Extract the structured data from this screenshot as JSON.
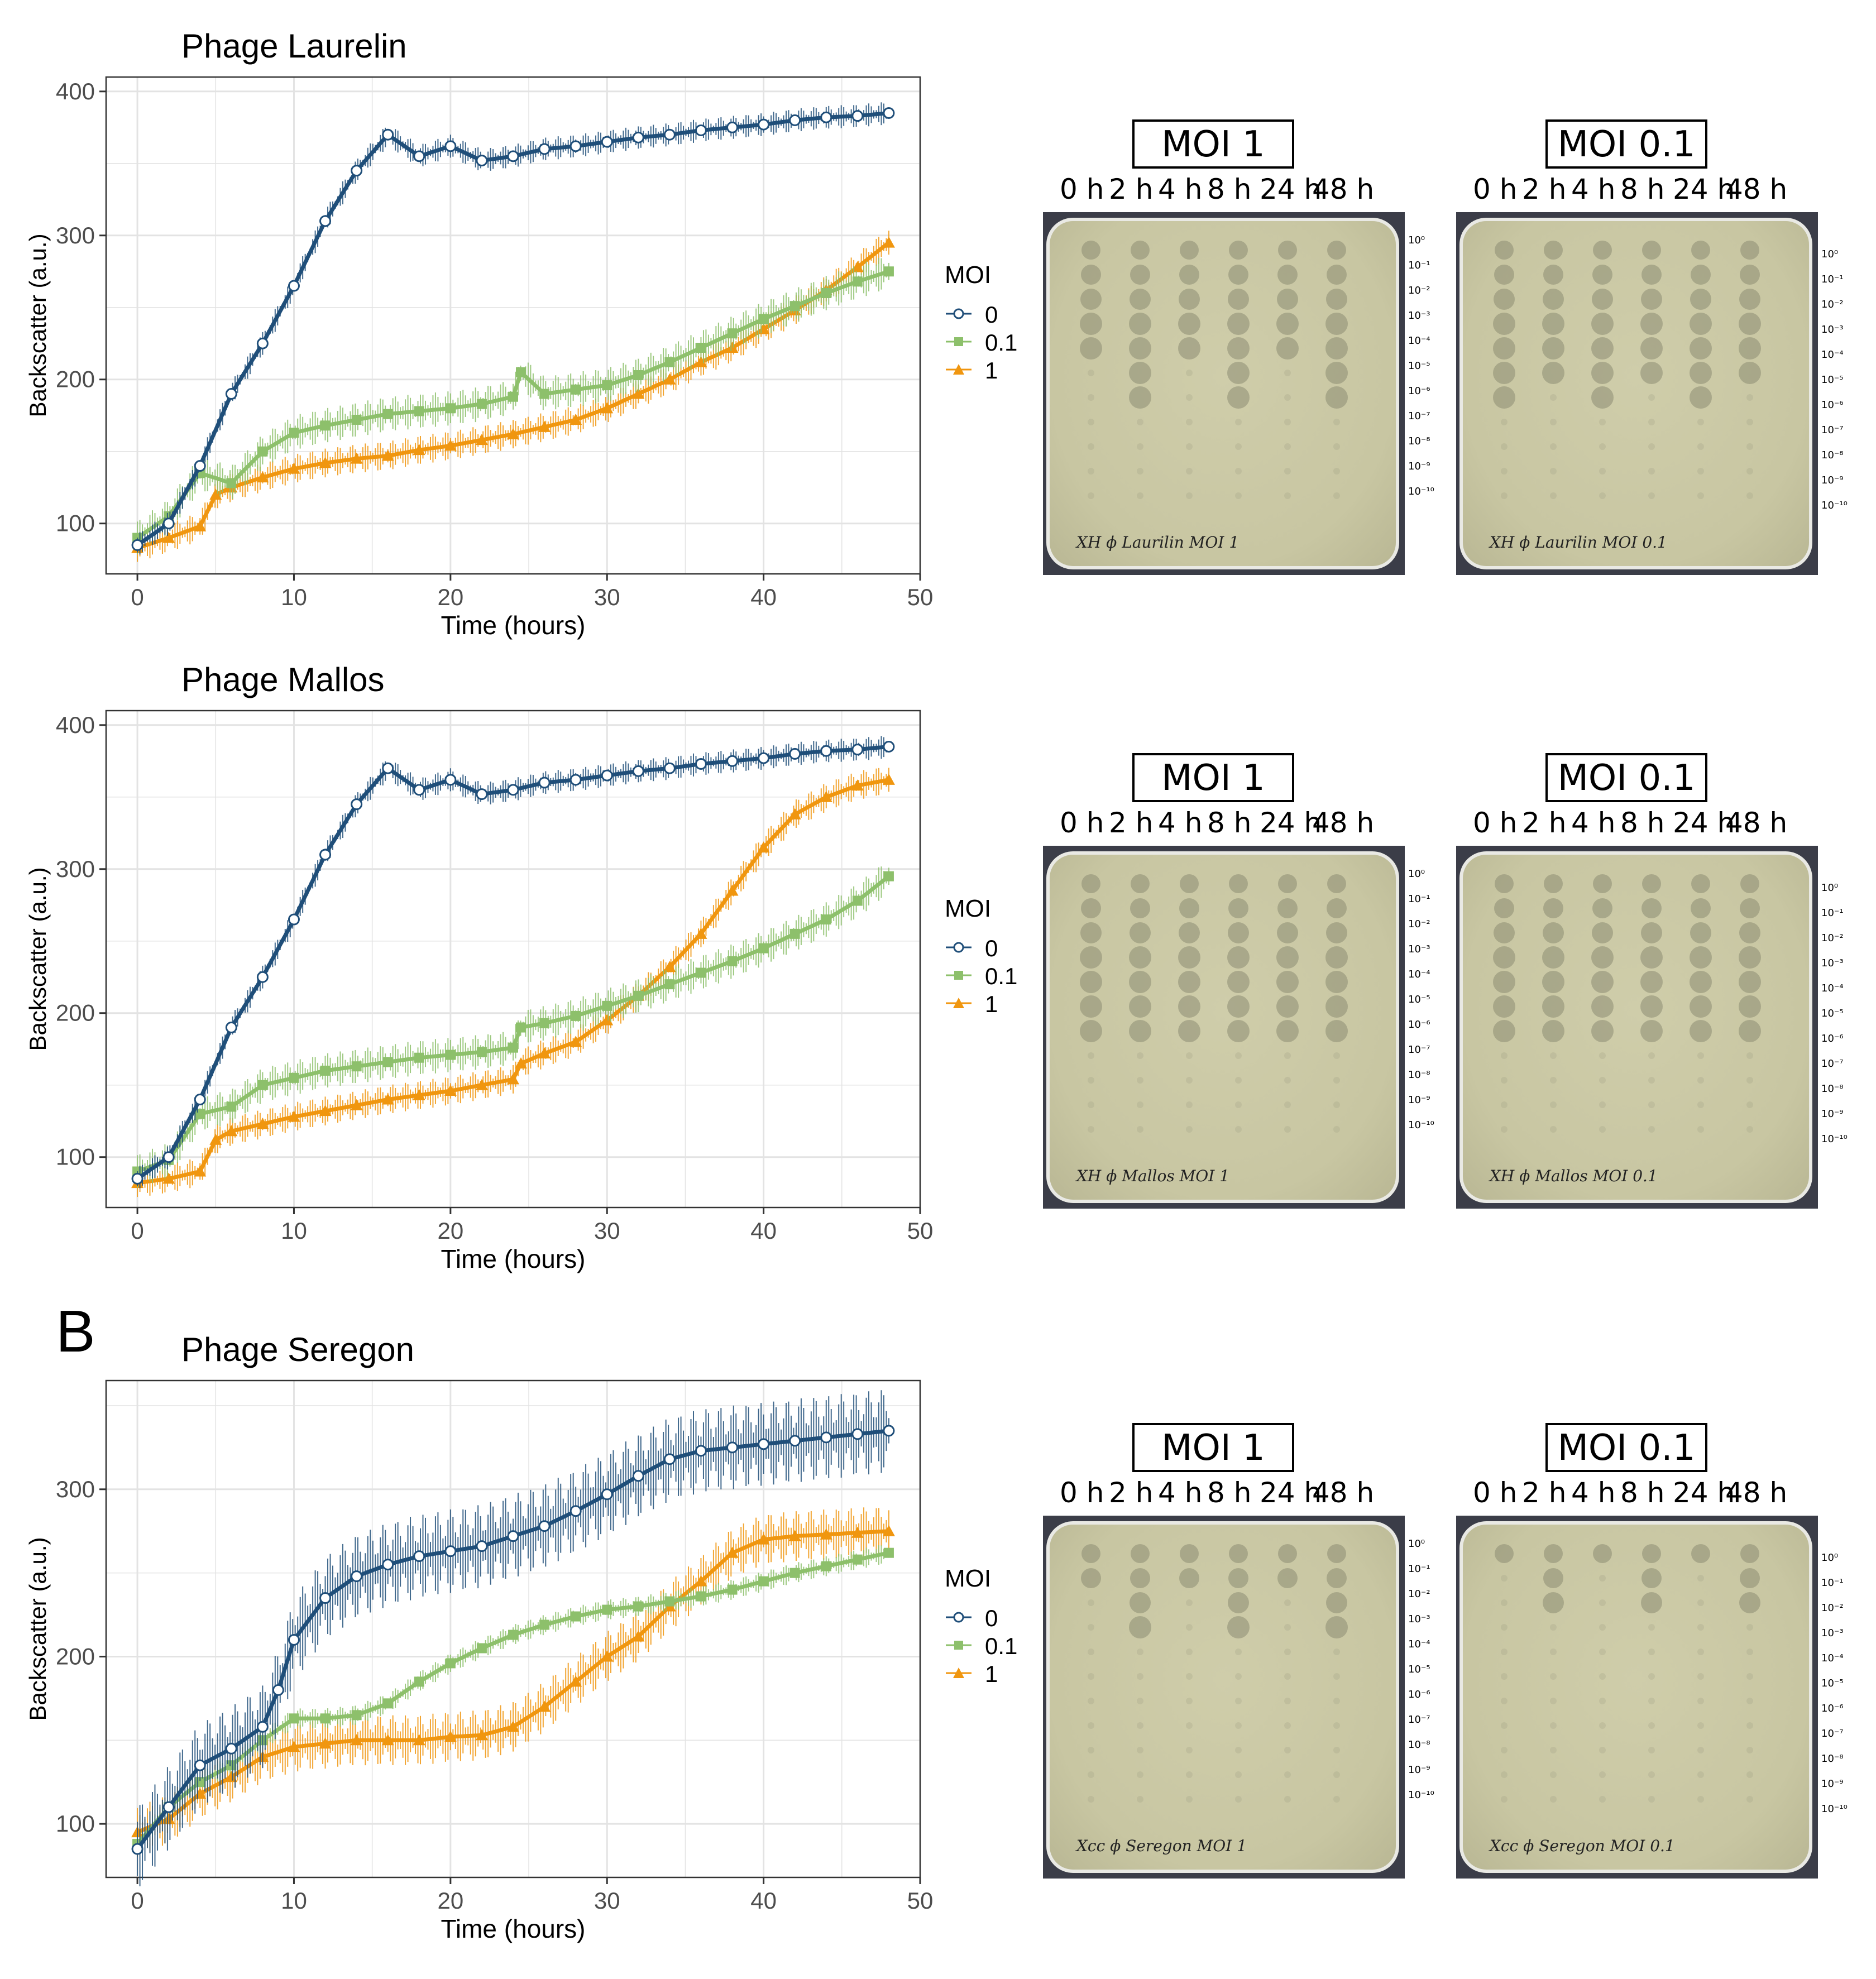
{
  "panel_b_letter": "B",
  "legend": {
    "title": "MOI",
    "entries": [
      "0",
      "0.1",
      "1"
    ]
  },
  "colors": {
    "moi0": "#1f4e79",
    "moi01": "#8dc06b",
    "moi1": "#f0960f",
    "grid": "#e3e3e3",
    "plate_bg": "#c8c6a2",
    "plate_dark": "#3b3d48"
  },
  "plate_section": {
    "moi_titles": [
      "MOI 1",
      "MOI 0.1"
    ],
    "timepoints": [
      "0 h",
      "2 h",
      "4 h",
      "8 h",
      "24 h",
      "48 h"
    ],
    "dilutions": [
      "10⁰",
      "10⁻¹",
      "10⁻²",
      "10⁻³",
      "10⁻⁴",
      "10⁻⁵",
      "10⁻⁶",
      "10⁻⁷",
      "10⁻⁸",
      "10⁻⁹",
      "10⁻¹⁰"
    ]
  },
  "plate_labels": {
    "laurelin": [
      "XH ϕ Laurilin MOI 1",
      "XH ϕ Laurilin MOI 0.1"
    ],
    "mallos": [
      "XH ϕ Mallos MOI 1",
      "XH ϕ Mallos MOI 0.1"
    ],
    "seregon": [
      "Xcc ϕ Seregon MOI 1",
      "Xcc ϕ Seregon MOI 0.1"
    ]
  },
  "chart_data": [
    {
      "type": "line",
      "title": "Phage Laurelin",
      "xlabel": "Time (hours)",
      "ylabel": "Backscatter (a.u.)",
      "xlim": [
        -2,
        50
      ],
      "ylim": [
        65,
        410
      ],
      "xticks": [
        0,
        10,
        20,
        30,
        40,
        50
      ],
      "yticks": [
        100,
        200,
        300,
        400
      ],
      "series": [
        {
          "name": "0",
          "x": [
            0,
            2,
            4,
            6,
            8,
            10,
            12,
            14,
            16,
            18,
            20,
            22,
            24,
            26,
            28,
            30,
            32,
            34,
            36,
            38,
            40,
            42,
            44,
            46,
            48
          ],
          "values": [
            85,
            100,
            140,
            190,
            225,
            265,
            310,
            345,
            370,
            355,
            362,
            352,
            355,
            360,
            362,
            365,
            368,
            370,
            373,
            375,
            377,
            380,
            382,
            383,
            385
          ],
          "err": 8
        },
        {
          "name": "0.1",
          "x": [
            0,
            2,
            4,
            6,
            8,
            10,
            12,
            14,
            16,
            18,
            20,
            22,
            24,
            24.5,
            26,
            28,
            30,
            32,
            34,
            36,
            38,
            40,
            42,
            44,
            46,
            48
          ],
          "values": [
            90,
            105,
            135,
            128,
            150,
            163,
            168,
            172,
            176,
            178,
            180,
            183,
            188,
            205,
            190,
            193,
            196,
            203,
            212,
            222,
            232,
            242,
            251,
            260,
            268,
            275
          ],
          "err": 12
        },
        {
          "name": "1",
          "x": [
            0,
            2,
            4,
            5,
            6,
            8,
            10,
            12,
            14,
            16,
            18,
            20,
            22,
            24,
            26,
            28,
            30,
            32,
            34,
            36,
            38,
            40,
            42,
            44,
            46,
            48
          ],
          "values": [
            83,
            90,
            98,
            120,
            125,
            132,
            138,
            142,
            145,
            147,
            151,
            154,
            158,
            162,
            167,
            172,
            180,
            190,
            200,
            212,
            222,
            235,
            248,
            262,
            278,
            295
          ],
          "err": 10
        }
      ]
    },
    {
      "type": "line",
      "title": "Phage Mallos",
      "xlabel": "Time (hours)",
      "ylabel": "Backscatter (a.u.)",
      "xlim": [
        -2,
        50
      ],
      "ylim": [
        65,
        410
      ],
      "xticks": [
        0,
        10,
        20,
        30,
        40,
        50
      ],
      "yticks": [
        100,
        200,
        300,
        400
      ],
      "series": [
        {
          "name": "0",
          "x": [
            0,
            2,
            4,
            6,
            8,
            10,
            12,
            14,
            16,
            18,
            20,
            22,
            24,
            26,
            28,
            30,
            32,
            34,
            36,
            38,
            40,
            42,
            44,
            46,
            48
          ],
          "values": [
            85,
            100,
            140,
            190,
            225,
            265,
            310,
            345,
            370,
            355,
            362,
            352,
            355,
            360,
            362,
            365,
            368,
            370,
            373,
            375,
            377,
            380,
            382,
            383,
            385
          ],
          "err": 8
        },
        {
          "name": "0.1",
          "x": [
            0,
            2,
            4,
            6,
            8,
            10,
            12,
            14,
            16,
            18,
            20,
            22,
            24,
            24.5,
            26,
            28,
            30,
            32,
            34,
            36,
            38,
            40,
            42,
            44,
            46,
            48
          ],
          "values": [
            90,
            98,
            130,
            135,
            150,
            155,
            160,
            163,
            166,
            169,
            171,
            173,
            176,
            190,
            193,
            198,
            205,
            212,
            220,
            228,
            236,
            245,
            255,
            265,
            278,
            295
          ],
          "err": 12
        },
        {
          "name": "1",
          "x": [
            0,
            2,
            4,
            5,
            6,
            8,
            10,
            12,
            14,
            16,
            18,
            20,
            22,
            24,
            24.5,
            26,
            28,
            30,
            32,
            34,
            36,
            38,
            40,
            42,
            44,
            46,
            48
          ],
          "values": [
            82,
            85,
            90,
            112,
            118,
            123,
            128,
            132,
            136,
            140,
            143,
            146,
            150,
            154,
            165,
            172,
            180,
            195,
            212,
            232,
            255,
            285,
            315,
            338,
            350,
            358,
            362
          ],
          "err": 10
        }
      ]
    },
    {
      "type": "line",
      "title": "Phage Seregon",
      "xlabel": "Time (hours)",
      "ylabel": "Backscatter (a.u.)",
      "xlim": [
        -2,
        50
      ],
      "ylim": [
        68,
        365
      ],
      "xticks": [
        0,
        10,
        20,
        30,
        40,
        50
      ],
      "yticks": [
        100,
        200,
        300
      ],
      "series": [
        {
          "name": "0",
          "x": [
            0,
            2,
            4,
            6,
            8,
            9,
            10,
            12,
            14,
            16,
            18,
            20,
            22,
            24,
            26,
            28,
            30,
            32,
            34,
            36,
            38,
            40,
            42,
            44,
            46,
            48
          ],
          "values": [
            85,
            110,
            135,
            145,
            158,
            180,
            210,
            235,
            248,
            255,
            260,
            263,
            266,
            272,
            278,
            287,
            297,
            308,
            318,
            323,
            325,
            327,
            329,
            331,
            333,
            335
          ],
          "err": 25
        },
        {
          "name": "0.1",
          "x": [
            0,
            2,
            4,
            6,
            8,
            10,
            12,
            14,
            16,
            18,
            20,
            22,
            24,
            26,
            28,
            30,
            32,
            34,
            36,
            38,
            40,
            42,
            44,
            46,
            48
          ],
          "values": [
            88,
            110,
            125,
            135,
            150,
            163,
            163,
            165,
            172,
            185,
            196,
            205,
            213,
            219,
            224,
            228,
            230,
            233,
            236,
            240,
            245,
            250,
            254,
            258,
            262
          ],
          "err": 6
        },
        {
          "name": "1",
          "x": [
            0,
            2,
            4,
            6,
            8,
            10,
            12,
            14,
            16,
            18,
            20,
            22,
            24,
            26,
            28,
            30,
            32,
            34,
            36,
            38,
            40,
            42,
            44,
            46,
            48
          ],
          "values": [
            95,
            103,
            118,
            128,
            140,
            146,
            148,
            150,
            150,
            150,
            152,
            153,
            158,
            170,
            185,
            200,
            212,
            230,
            245,
            262,
            270,
            272,
            273,
            274,
            275
          ],
          "err": 15
        }
      ]
    }
  ]
}
